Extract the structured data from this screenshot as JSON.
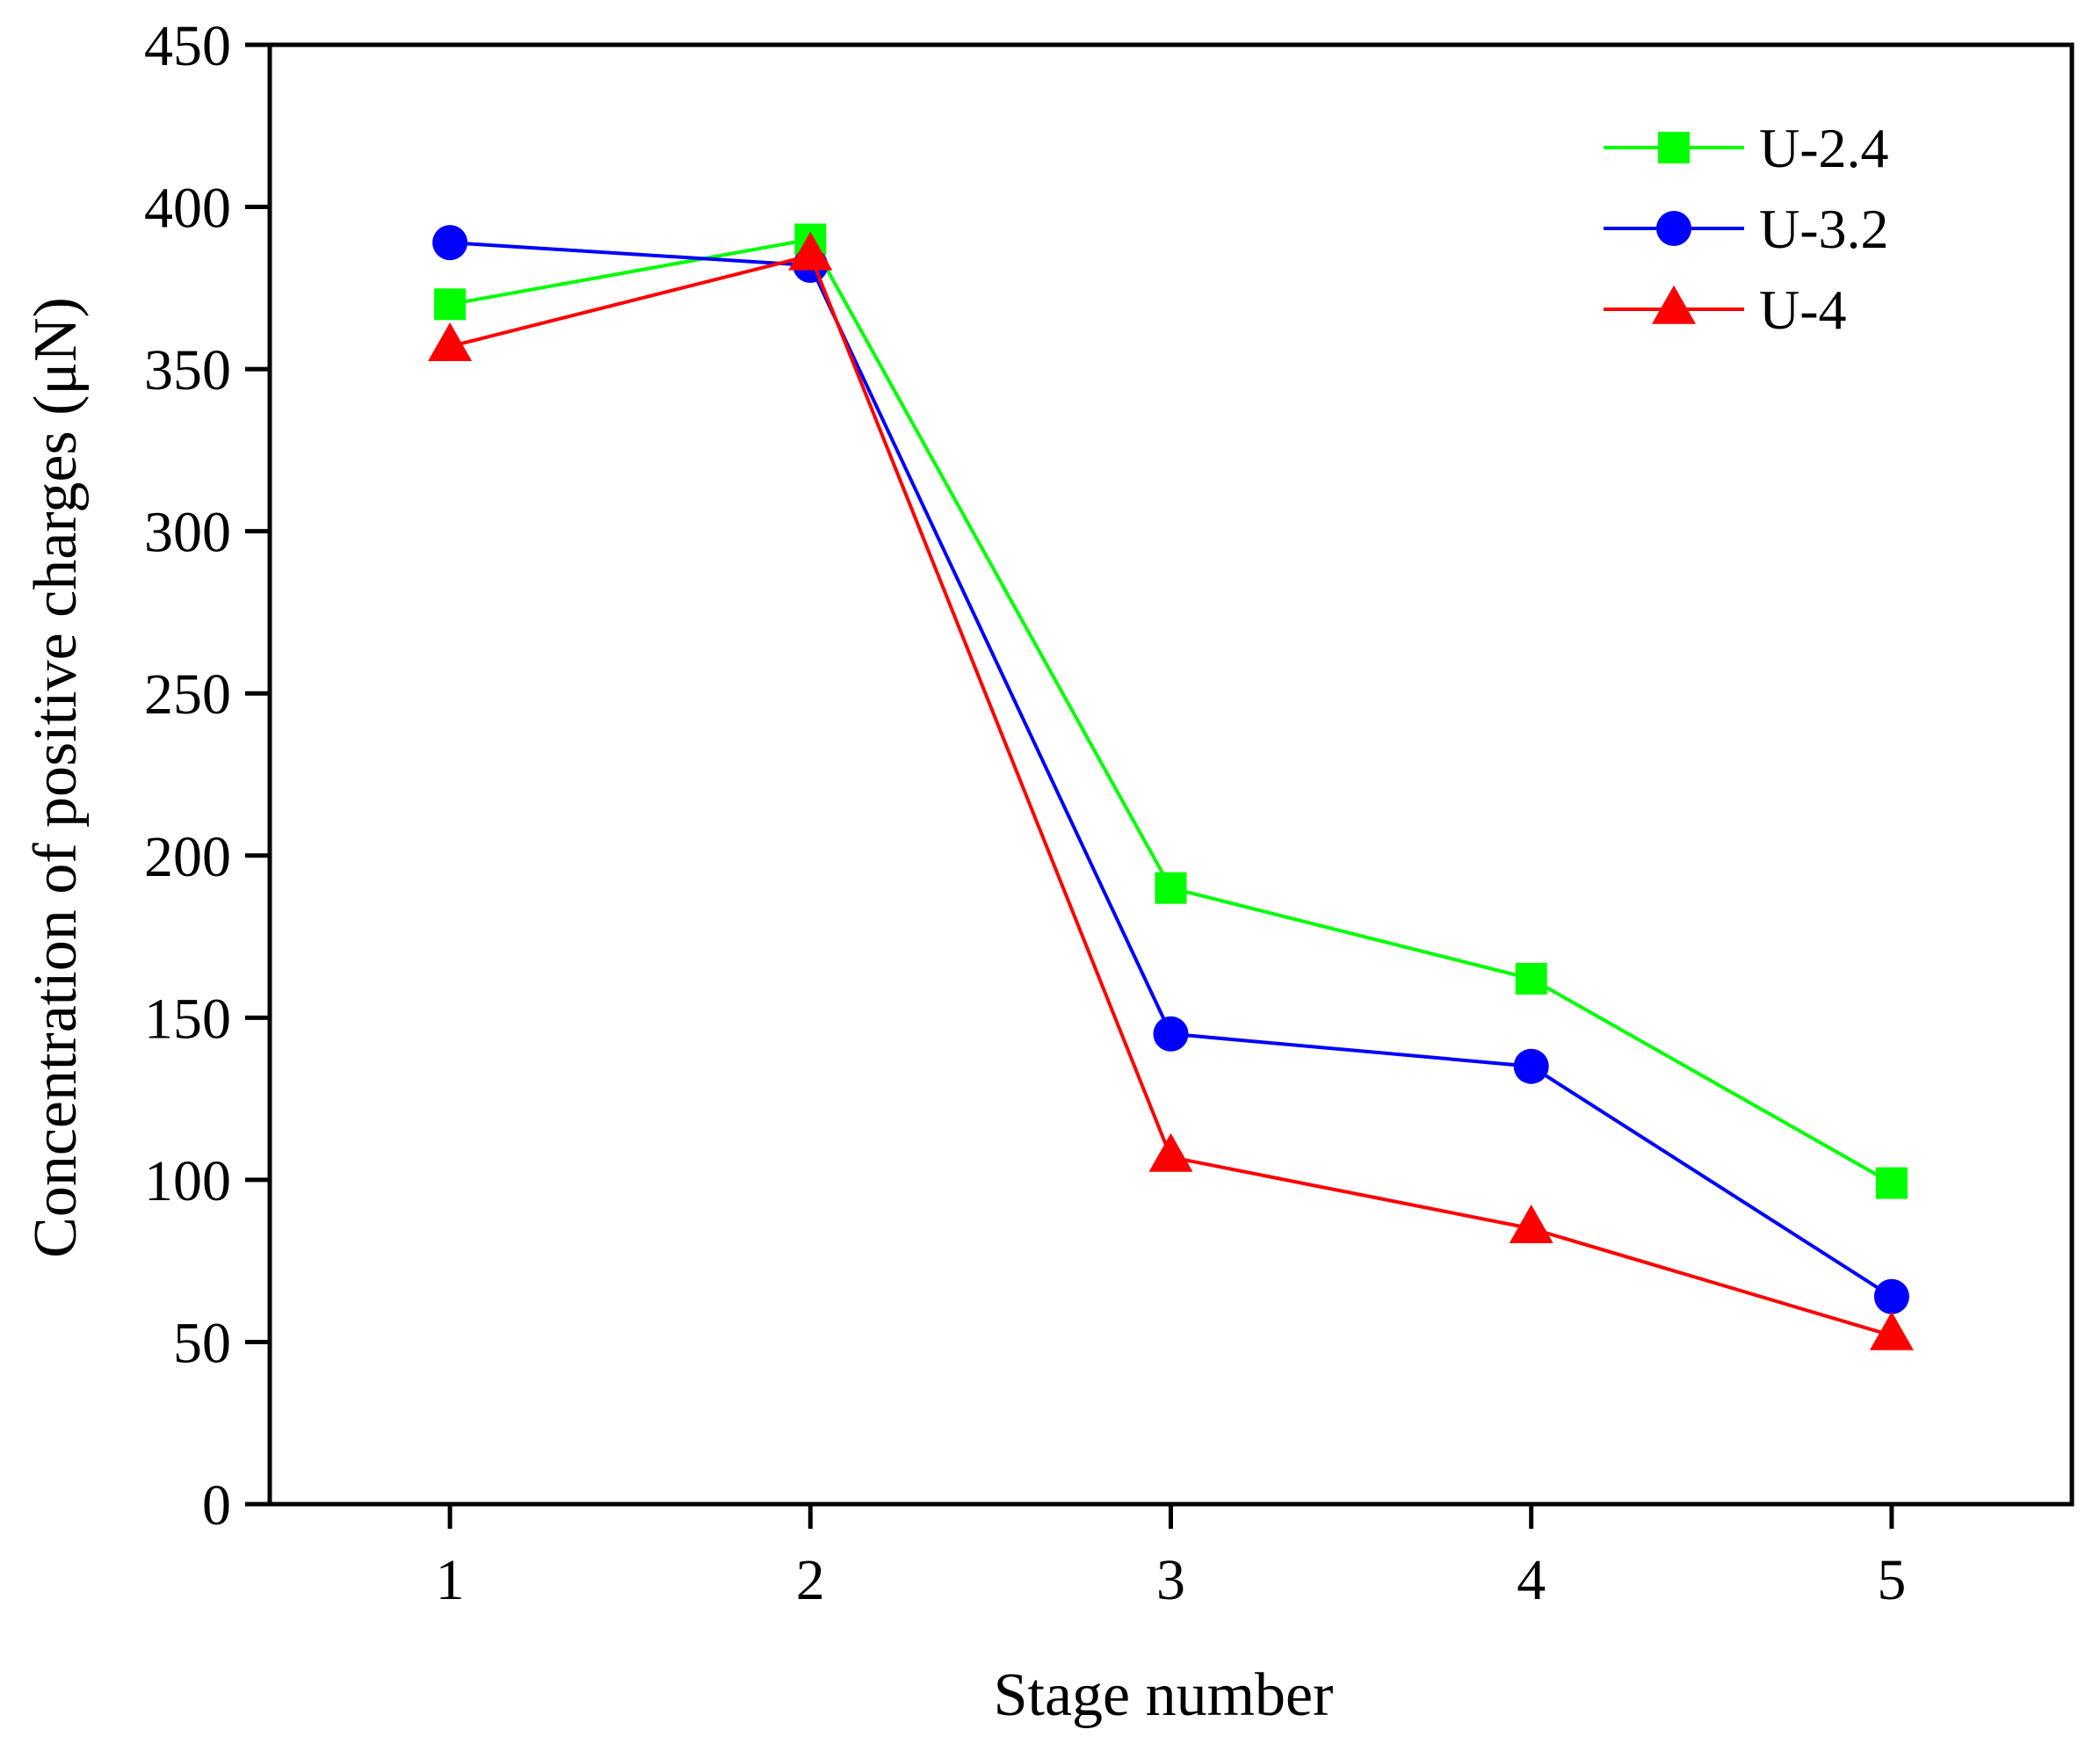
{
  "chart_data": {
    "type": "line",
    "title": "",
    "xlabel": "Stage number",
    "ylabel": "Concentration of positive charges (μN)",
    "x": [
      1,
      2,
      3,
      4,
      5
    ],
    "xticks": [
      "1",
      "2",
      "3",
      "4",
      "5"
    ],
    "xlim": [
      0.5,
      5.5
    ],
    "ylim": [
      0,
      450
    ],
    "yticks": [
      "0",
      "50",
      "100",
      "150",
      "200",
      "250",
      "300",
      "350",
      "400",
      "450"
    ],
    "grid": false,
    "legend_position": "top-right",
    "series": [
      {
        "name": "U-2.4",
        "color": "#00ff00",
        "marker": "square",
        "values": [
          370,
          390,
          190,
          162,
          99
        ]
      },
      {
        "name": "U-3.2",
        "color": "#0000ff",
        "marker": "circle",
        "values": [
          389,
          382,
          145,
          135,
          64
        ]
      },
      {
        "name": "U-4",
        "color": "#ff0000",
        "marker": "triangle",
        "values": [
          357,
          385,
          107,
          85,
          52
        ]
      }
    ]
  }
}
